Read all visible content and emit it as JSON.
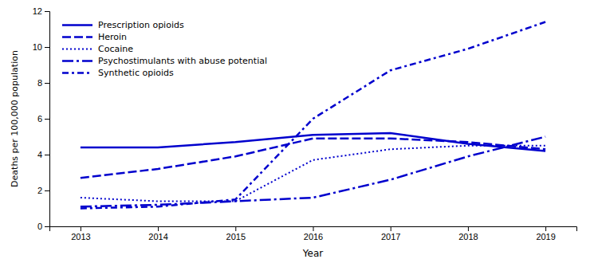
{
  "chart_data": {
    "type": "line",
    "x": [
      2013,
      2014,
      2015,
      2016,
      2017,
      2018,
      2019
    ],
    "xlabel": "Year",
    "ylabel": "Deaths per 100,000 population",
    "xlim": [
      2012.6,
      2019.4
    ],
    "xticks": [
      2013,
      2014,
      2015,
      2016,
      2017,
      2018,
      2019
    ],
    "ylim": [
      0,
      12
    ],
    "yticks": [
      0,
      2,
      4,
      6,
      8,
      10,
      12
    ],
    "grid": false,
    "legend": "top-left",
    "series": [
      {
        "name": "Prescription opioids",
        "color": "#0000cd",
        "line_style": "solid",
        "values": [
          4.4,
          4.4,
          4.7,
          5.1,
          5.2,
          4.6,
          4.2
        ]
      },
      {
        "name": "Heroin",
        "color": "#0000cd",
        "line_style": "dashed",
        "values": [
          2.7,
          3.2,
          3.9,
          4.9,
          4.9,
          4.7,
          4.3
        ]
      },
      {
        "name": "Cocaine",
        "color": "#0000cd",
        "line_style": "dotted",
        "values": [
          1.6,
          1.4,
          1.4,
          3.7,
          4.3,
          4.5,
          4.5
        ]
      },
      {
        "name": "Psychostimulants with abuse potential",
        "color": "#0000cd",
        "line_style": "longdashdot",
        "values": [
          1.1,
          1.2,
          1.4,
          1.6,
          2.6,
          3.9,
          5.0
        ]
      },
      {
        "name": "Synthetic opioids",
        "color": "#0000cd",
        "line_style": "dashdot",
        "values": [
          1.0,
          1.1,
          1.5,
          6.0,
          8.7,
          9.9,
          11.4
        ]
      }
    ]
  }
}
